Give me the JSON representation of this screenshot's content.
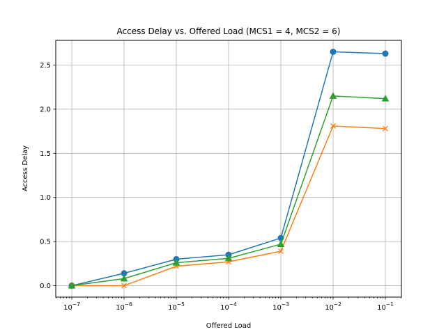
{
  "chart_data": {
    "type": "line",
    "title": "Access Delay vs. Offered Load (MCS1 = 4, MCS2 = 6)",
    "xlabel": "Offered Load",
    "ylabel": "Access Delay",
    "xscale": "log",
    "x": [
      1e-07,
      1e-06,
      1e-05,
      0.0001,
      0.001,
      0.01,
      0.1
    ],
    "x_tick_exponents": [
      "−7",
      "−6",
      "−5",
      "−4",
      "−3",
      "−2",
      "−1"
    ],
    "x_tick_base": "10",
    "y_ticks": [
      0.0,
      0.5,
      1.0,
      1.5,
      2.0,
      2.5
    ],
    "y_tick_labels": [
      "0.0",
      "0.5",
      "1.0",
      "1.5",
      "2.0",
      "2.5"
    ],
    "ylim": [
      -0.13,
      2.78
    ],
    "grid": true,
    "series": [
      {
        "color": "#1f77b4",
        "marker": "circle",
        "values": [
          0.0,
          0.14,
          0.3,
          0.35,
          0.54,
          2.65,
          2.63
        ]
      },
      {
        "color": "#ff7f0e",
        "marker": "x",
        "values": [
          0.0,
          0.0,
          0.22,
          0.27,
          0.39,
          1.81,
          1.78
        ]
      },
      {
        "color": "#2ca02c",
        "marker": "triangle",
        "values": [
          0.0,
          0.08,
          0.26,
          0.31,
          0.47,
          2.15,
          2.12
        ]
      }
    ]
  }
}
